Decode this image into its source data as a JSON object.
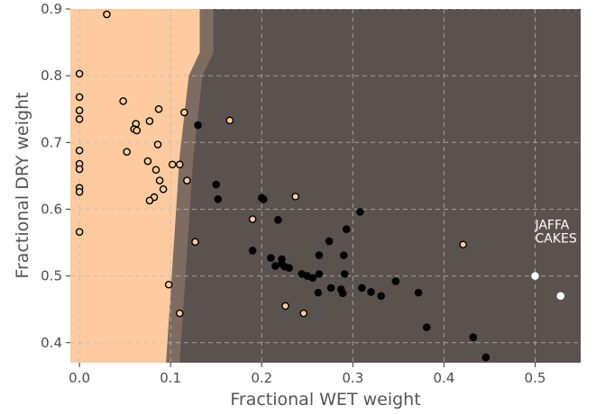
{
  "chart_data": {
    "type": "scatter",
    "xlabel": "Fractional WET weight",
    "ylabel": "Fractional DRY weight",
    "xlim": [
      -0.01,
      0.55
    ],
    "ylim": [
      0.37,
      0.9
    ],
    "xticks": [
      0.0,
      0.1,
      0.2,
      0.3,
      0.4,
      0.5
    ],
    "xtick_labels": [
      "0.0",
      "0.1",
      "0.2",
      "0.3",
      "0.4",
      "0.5"
    ],
    "yticks": [
      0.4,
      0.5,
      0.6,
      0.7,
      0.8,
      0.9
    ],
    "ytick_labels": [
      "0.4",
      "0.5",
      "0.6",
      "0.7",
      "0.8",
      "0.9"
    ],
    "grid": true,
    "colors": {
      "region_a": "#fdcb9f",
      "region_b": "#5a524e",
      "region_edge": [
        "#e8b48a",
        "#c8a07e",
        "#a28670",
        "#7e6c62"
      ],
      "point_a_fill": "#fdcb9f",
      "point_b_fill": "#000000",
      "point_new_fill": "#ffffff",
      "point_edge": "#000000"
    },
    "decision_boundary": [
      [
        0.132,
        0.9
      ],
      [
        0.132,
        0.835
      ],
      [
        0.12,
        0.8
      ],
      [
        0.11,
        0.68
      ],
      [
        0.095,
        0.37
      ]
    ],
    "series": [
      {
        "points": [
          [
            0.03,
            0.892
          ],
          [
            0.0,
            0.803
          ],
          [
            0.0,
            0.768
          ],
          [
            0.0,
            0.748
          ],
          [
            0.0,
            0.735
          ],
          [
            0.0,
            0.688
          ],
          [
            0.0,
            0.668
          ],
          [
            0.0,
            0.66
          ],
          [
            0.0,
            0.632
          ],
          [
            0.0,
            0.626
          ],
          [
            0.0,
            0.566
          ],
          [
            0.048,
            0.762
          ],
          [
            0.062,
            0.728
          ],
          [
            0.06,
            0.72
          ],
          [
            0.063,
            0.718
          ],
          [
            0.077,
            0.732
          ],
          [
            0.087,
            0.75
          ],
          [
            0.115,
            0.745
          ],
          [
            0.165,
            0.733
          ],
          [
            0.086,
            0.697
          ],
          [
            0.052,
            0.686
          ],
          [
            0.075,
            0.672
          ],
          [
            0.102,
            0.667
          ],
          [
            0.11,
            0.667
          ],
          [
            0.084,
            0.659
          ],
          [
            0.088,
            0.643
          ],
          [
            0.118,
            0.643
          ],
          [
            0.092,
            0.63
          ],
          [
            0.082,
            0.618
          ],
          [
            0.077,
            0.613
          ],
          [
            0.127,
            0.551
          ],
          [
            0.098,
            0.487
          ],
          [
            0.11,
            0.444
          ],
          [
            0.19,
            0.585
          ],
          [
            0.237,
            0.619
          ],
          [
            0.226,
            0.455
          ],
          [
            0.246,
            0.444
          ],
          [
            0.421,
            0.547
          ]
        ]
      },
      {
        "points": [
          [
            0.13,
            0.726
          ],
          [
            0.15,
            0.637
          ],
          [
            0.152,
            0.615
          ],
          [
            0.2,
            0.617
          ],
          [
            0.202,
            0.615
          ],
          [
            0.218,
            0.584
          ],
          [
            0.19,
            0.538
          ],
          [
            0.308,
            0.596
          ],
          [
            0.293,
            0.57
          ],
          [
            0.274,
            0.552
          ],
          [
            0.21,
            0.527
          ],
          [
            0.222,
            0.525
          ],
          [
            0.215,
            0.515
          ],
          [
            0.222,
            0.518
          ],
          [
            0.225,
            0.514
          ],
          [
            0.23,
            0.512
          ],
          [
            0.244,
            0.503
          ],
          [
            0.25,
            0.5
          ],
          [
            0.256,
            0.497
          ],
          [
            0.263,
            0.531
          ],
          [
            0.263,
            0.503
          ],
          [
            0.29,
            0.531
          ],
          [
            0.291,
            0.503
          ],
          [
            0.276,
            0.482
          ],
          [
            0.262,
            0.475
          ],
          [
            0.287,
            0.48
          ],
          [
            0.289,
            0.474
          ],
          [
            0.31,
            0.482
          ],
          [
            0.32,
            0.476
          ],
          [
            0.331,
            0.47
          ],
          [
            0.347,
            0.492
          ],
          [
            0.372,
            0.475
          ],
          [
            0.381,
            0.423
          ],
          [
            0.432,
            0.408
          ],
          [
            0.446,
            0.378
          ]
        ]
      },
      {
        "points": [
          [
            0.5,
            0.5
          ],
          [
            0.528,
            0.47
          ]
        ]
      }
    ],
    "annotation": {
      "text_lines": [
        "JAFFA",
        "CAKES"
      ],
      "x": 0.5,
      "y": 0.53
    }
  }
}
